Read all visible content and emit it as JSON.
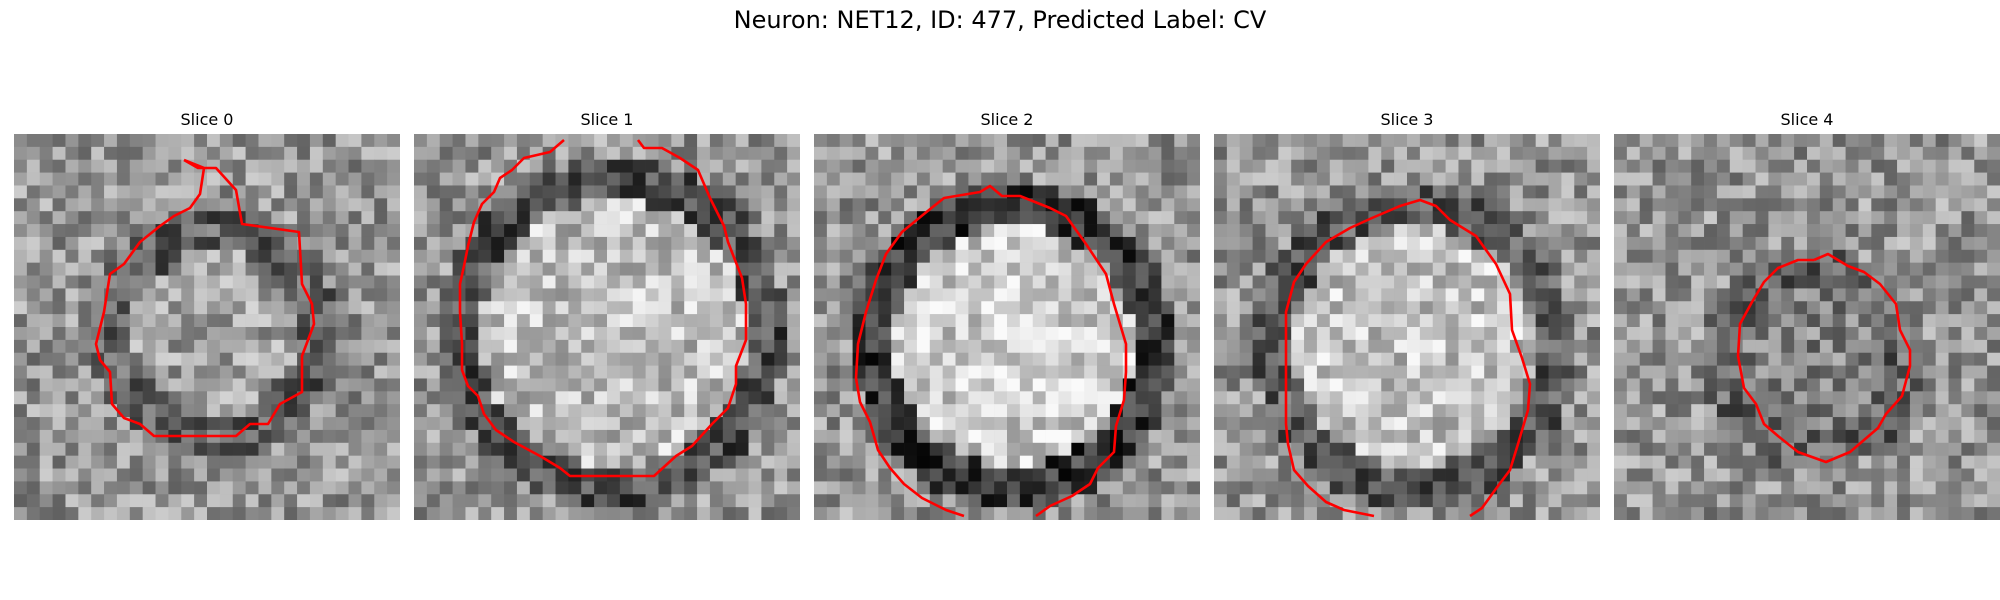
{
  "title": "Neuron: NET12, ID: 477, Predicted Label: CV",
  "slices": [
    {
      "label": "Slice 0",
      "contour_color": "#ff0000"
    },
    {
      "label": "Slice 1",
      "contour_color": "#ff0000"
    },
    {
      "label": "Slice 2",
      "contour_color": "#ff0000"
    },
    {
      "label": "Slice 3",
      "contour_color": "#ff0000"
    },
    {
      "label": "Slice 4",
      "contour_color": "#ff0000"
    }
  ],
  "image": {
    "colormap": "grayscale",
    "grid_size": 30
  }
}
